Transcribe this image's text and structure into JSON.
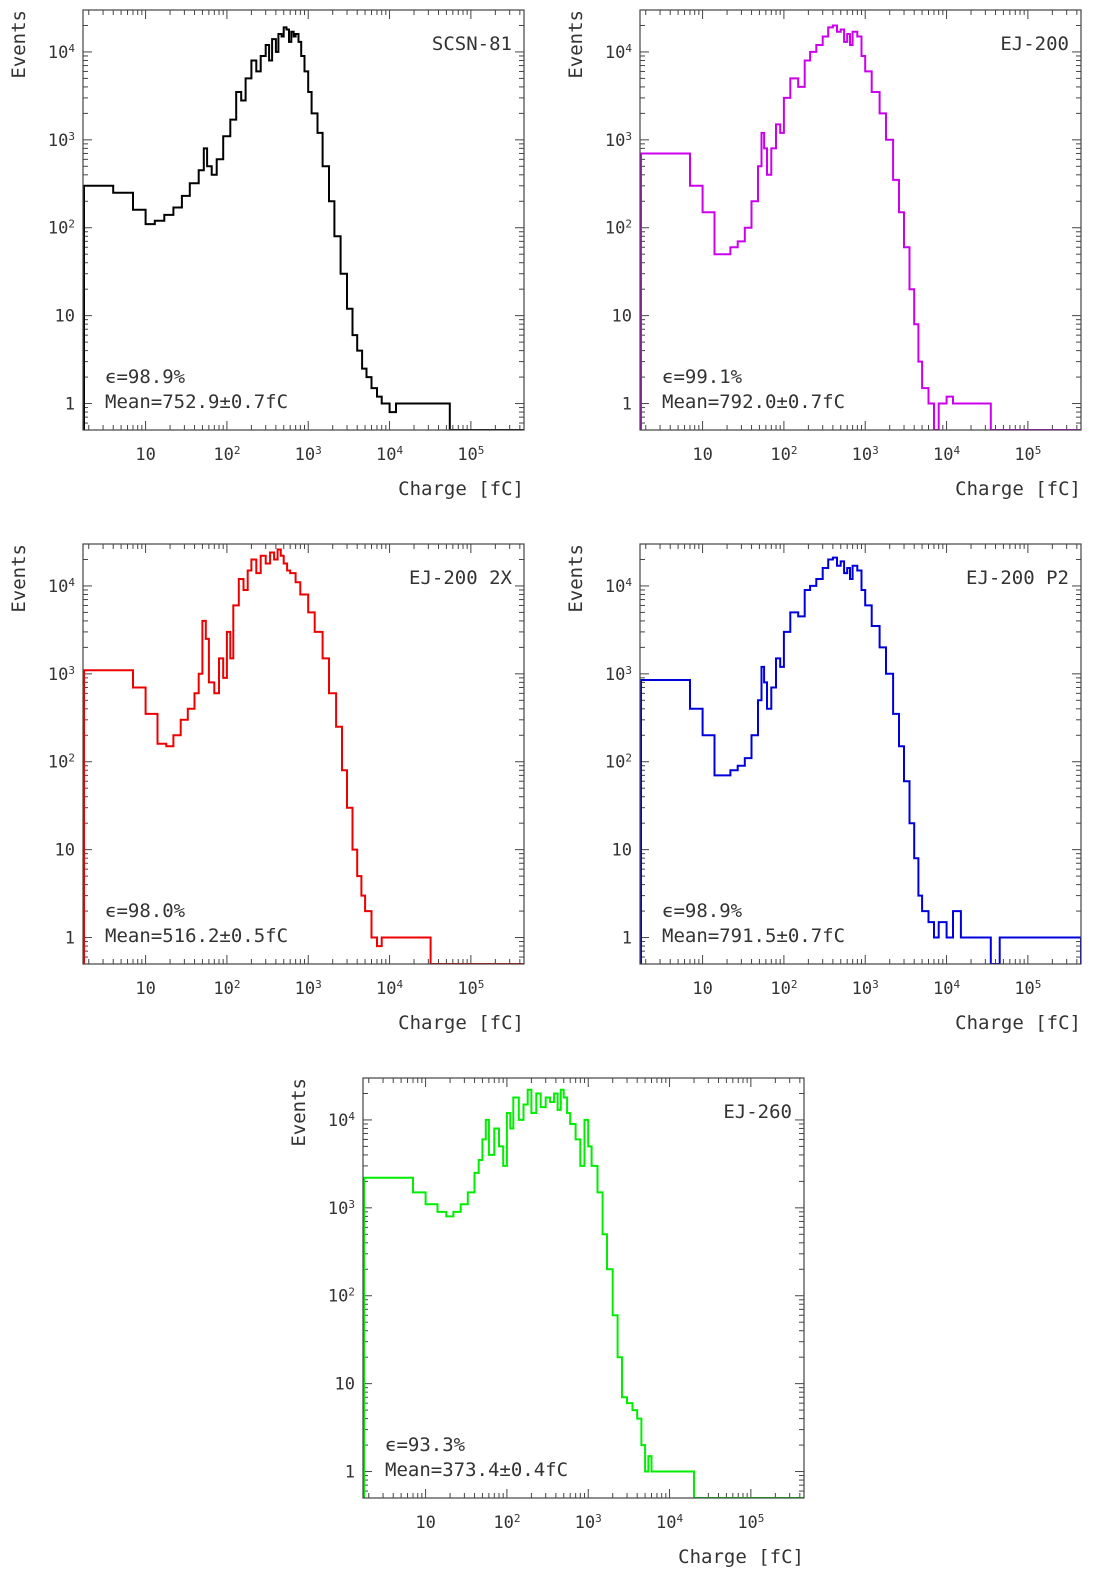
{
  "figure": {
    "panels": [
      {
        "label": "SCSN-81",
        "color": "#000000",
        "efficiency_text": "ϵ=98.9%",
        "mean_text": "Mean=752.9±0.7fC"
      },
      {
        "label": "EJ-200",
        "color": "#cc00ee",
        "efficiency_text": "ϵ=99.1%",
        "mean_text": "Mean=792.0±0.7fC"
      },
      {
        "label": "EJ-200 2X",
        "color": "#ee0000",
        "efficiency_text": "ϵ=98.0%",
        "mean_text": "Mean=516.2±0.5fC"
      },
      {
        "label": "EJ-200 P2",
        "color": "#0000dd",
        "efficiency_text": "ϵ=98.9%",
        "mean_text": "Mean=791.5±0.7fC"
      },
      {
        "label": "EJ-260",
        "color": "#00ee00",
        "efficiency_text": "ϵ=93.3%",
        "mean_text": "Mean=373.4±0.4fC"
      }
    ]
  },
  "chart_data": [
    {
      "type": "line",
      "title": "SCSN-81",
      "xlabel": "Charge [fC]",
      "ylabel": "Events",
      "xscale": "log",
      "yscale": "log",
      "xlim": [
        1.7,
        450000
      ],
      "ylim": [
        0.5,
        30000
      ],
      "x_ticks": [
        "10",
        "10^2",
        "10^3",
        "10^4",
        "10^5"
      ],
      "y_ticks": [
        "1",
        "10",
        "10^2",
        "10^3",
        "10^4"
      ],
      "legend": "top-right",
      "series": [
        {
          "name": "SCSN-81",
          "x": [
            1.7,
            4,
            7,
            10,
            13,
            17,
            22,
            28,
            35,
            45,
            52,
            57,
            65,
            75,
            90,
            110,
            130,
            150,
            170,
            200,
            230,
            260,
            300,
            330,
            360,
            400,
            430,
            470,
            500,
            540,
            580,
            620,
            660,
            700,
            760,
            820,
            900,
            1000,
            1100,
            1300,
            1500,
            1800,
            2100,
            2500,
            3000,
            3500,
            4000,
            4600,
            5200,
            6000,
            7000,
            8000,
            9000,
            10000,
            12000,
            14000,
            17000,
            20000,
            25000,
            30000,
            40000,
            55000,
            450000
          ],
          "y": [
            300,
            250,
            160,
            110,
            120,
            140,
            170,
            230,
            320,
            450,
            800,
            500,
            400,
            600,
            1100,
            1700,
            3500,
            2800,
            5000,
            8000,
            6000,
            9000,
            12000,
            8000,
            14000,
            10000,
            16000,
            15000,
            19000,
            18000,
            13000,
            17000,
            15000,
            16000,
            13000,
            9000,
            6000,
            3500,
            2000,
            1200,
            500,
            200,
            80,
            30,
            12,
            6,
            4,
            2.5,
            2,
            1.5,
            1.2,
            1,
            1,
            0.8,
            1,
            1,
            1,
            1,
            1,
            1,
            1,
            0.5,
            0.5
          ]
        }
      ]
    },
    {
      "type": "line",
      "title": "EJ-200",
      "xlabel": "Charge [fC]",
      "ylabel": "Events",
      "xscale": "log",
      "yscale": "log",
      "xlim": [
        1.7,
        450000
      ],
      "ylim": [
        0.5,
        30000
      ],
      "x_ticks": [
        "10",
        "10^2",
        "10^3",
        "10^4",
        "10^5"
      ],
      "y_ticks": [
        "1",
        "10",
        "10^2",
        "10^3",
        "10^4"
      ],
      "legend": "top-right",
      "series": [
        {
          "name": "EJ-200",
          "x": [
            1.7,
            4,
            7,
            10,
            14,
            18,
            22,
            27,
            33,
            40,
            48,
            53,
            57,
            62,
            70,
            80,
            90,
            100,
            120,
            150,
            180,
            210,
            250,
            300,
            350,
            400,
            450,
            500,
            550,
            600,
            650,
            700,
            800,
            900,
            1000,
            1200,
            1500,
            1800,
            2200,
            2600,
            3000,
            3500,
            4000,
            4500,
            5000,
            6000,
            7000,
            8000,
            10000,
            12000,
            15000,
            18000,
            22000,
            27000,
            35000,
            45000,
            450000
          ],
          "y": [
            700,
            700,
            300,
            150,
            50,
            50,
            60,
            70,
            100,
            200,
            500,
            1200,
            800,
            400,
            800,
            1500,
            1200,
            3000,
            5000,
            4000,
            8000,
            10000,
            12000,
            15000,
            19000,
            20000,
            17000,
            18000,
            13000,
            16000,
            12000,
            17000,
            15000,
            9000,
            6000,
            3500,
            2000,
            1000,
            350,
            150,
            60,
            20,
            8,
            3,
            1.5,
            1,
            0.5,
            1,
            1.2,
            1,
            1,
            1,
            1,
            1,
            0.5,
            0.5,
            0.5
          ]
        }
      ]
    },
    {
      "type": "line",
      "title": "EJ-200 2X",
      "xlabel": "Charge [fC]",
      "ylabel": "Events",
      "xscale": "log",
      "yscale": "log",
      "xlim": [
        1.7,
        450000
      ],
      "ylim": [
        0.5,
        30000
      ],
      "x_ticks": [
        "10",
        "10^2",
        "10^3",
        "10^4",
        "10^5"
      ],
      "y_ticks": [
        "1",
        "10",
        "10^2",
        "10^3",
        "10^4"
      ],
      "legend": "top-right",
      "series": [
        {
          "name": "EJ-200 2X",
          "x": [
            1.7,
            4,
            7,
            10,
            14,
            18,
            22,
            27,
            33,
            40,
            45,
            50,
            55,
            60,
            70,
            80,
            90,
            100,
            110,
            120,
            140,
            160,
            180,
            200,
            230,
            260,
            300,
            340,
            380,
            420,
            460,
            500,
            550,
            600,
            700,
            800,
            1000,
            1200,
            1500,
            1800,
            2200,
            2600,
            3000,
            3500,
            4000,
            4500,
            5000,
            6000,
            7000,
            8000,
            10000,
            12000,
            15000,
            20000,
            25000,
            32000,
            450000
          ],
          "y": [
            1100,
            1100,
            700,
            350,
            160,
            150,
            200,
            300,
            400,
            600,
            1000,
            4000,
            2500,
            800,
            600,
            1500,
            900,
            3000,
            1500,
            6000,
            12000,
            9000,
            15000,
            20000,
            14000,
            22000,
            18000,
            24000,
            20000,
            26000,
            22000,
            18000,
            15000,
            14000,
            11000,
            8000,
            5000,
            3000,
            1500,
            600,
            250,
            80,
            30,
            10,
            5,
            3,
            2,
            1,
            0.8,
            1,
            1,
            1,
            1,
            1,
            1,
            0.5,
            0.5
          ]
        }
      ]
    },
    {
      "type": "line",
      "title": "EJ-200 P2",
      "xlabel": "Charge [fC]",
      "ylabel": "Events",
      "xscale": "log",
      "yscale": "log",
      "xlim": [
        1.7,
        450000
      ],
      "ylim": [
        0.5,
        30000
      ],
      "x_ticks": [
        "10",
        "10^2",
        "10^3",
        "10^4",
        "10^5"
      ],
      "y_ticks": [
        "1",
        "10",
        "10^2",
        "10^3",
        "10^4"
      ],
      "legend": "top-right",
      "series": [
        {
          "name": "EJ-200 P2",
          "x": [
            1.7,
            4,
            7,
            10,
            14,
            18,
            22,
            27,
            33,
            40,
            48,
            53,
            57,
            62,
            70,
            80,
            90,
            100,
            120,
            150,
            180,
            210,
            250,
            300,
            350,
            400,
            450,
            500,
            550,
            600,
            650,
            700,
            800,
            900,
            1000,
            1200,
            1500,
            1800,
            2200,
            2600,
            3000,
            3500,
            4000,
            4500,
            5000,
            6000,
            7000,
            8000,
            10000,
            12000,
            15000,
            18000,
            22000,
            27000,
            35000,
            45000,
            450000
          ],
          "y": [
            850,
            850,
            400,
            200,
            70,
            70,
            80,
            90,
            110,
            200,
            500,
            1200,
            800,
            400,
            700,
            1500,
            1200,
            3000,
            5000,
            4500,
            9000,
            10000,
            12000,
            16000,
            20000,
            21000,
            17000,
            19000,
            14000,
            16000,
            12000,
            17000,
            15000,
            9000,
            6000,
            3500,
            2000,
            1000,
            350,
            150,
            60,
            20,
            8,
            3,
            2,
            1.5,
            1,
            1.5,
            1,
            2,
            1,
            1,
            1,
            1,
            0.5,
            1,
            0.5
          ]
        }
      ]
    },
    {
      "type": "line",
      "title": "EJ-260",
      "xlabel": "Charge [fC]",
      "ylabel": "Events",
      "xscale": "log",
      "yscale": "log",
      "xlim": [
        1.7,
        450000
      ],
      "ylim": [
        0.5,
        30000
      ],
      "x_ticks": [
        "10",
        "10^2",
        "10^3",
        "10^4",
        "10^5"
      ],
      "y_ticks": [
        "1",
        "10",
        "10^2",
        "10^3",
        "10^4"
      ],
      "legend": "top-right",
      "series": [
        {
          "name": "EJ-260",
          "x": [
            1.7,
            4,
            7,
            10,
            14,
            18,
            22,
            27,
            33,
            40,
            45,
            50,
            55,
            60,
            70,
            80,
            90,
            100,
            110,
            120,
            140,
            160,
            180,
            200,
            230,
            260,
            300,
            340,
            380,
            420,
            460,
            500,
            550,
            600,
            700,
            800,
            900,
            1000,
            1100,
            1300,
            1500,
            1700,
            2000,
            2300,
            2600,
            3000,
            3500,
            4000,
            4500,
            5000,
            5500,
            6000,
            7000,
            8000,
            10000,
            12000,
            15000,
            20000,
            450000
          ],
          "y": [
            2200,
            2200,
            1500,
            1100,
            900,
            800,
            900,
            1100,
            1500,
            2500,
            3500,
            6000,
            10000,
            4000,
            8000,
            5000,
            3000,
            12000,
            8000,
            18000,
            10000,
            15000,
            22000,
            12000,
            20000,
            14000,
            18000,
            16000,
            20000,
            13000,
            22000,
            18000,
            12000,
            9000,
            6000,
            3000,
            10000,
            5000,
            3000,
            1500,
            500,
            200,
            60,
            20,
            7,
            6,
            5,
            4,
            2,
            1,
            1.5,
            1,
            1,
            1,
            1,
            1,
            1,
            0.5,
            0.5
          ]
        }
      ]
    }
  ]
}
